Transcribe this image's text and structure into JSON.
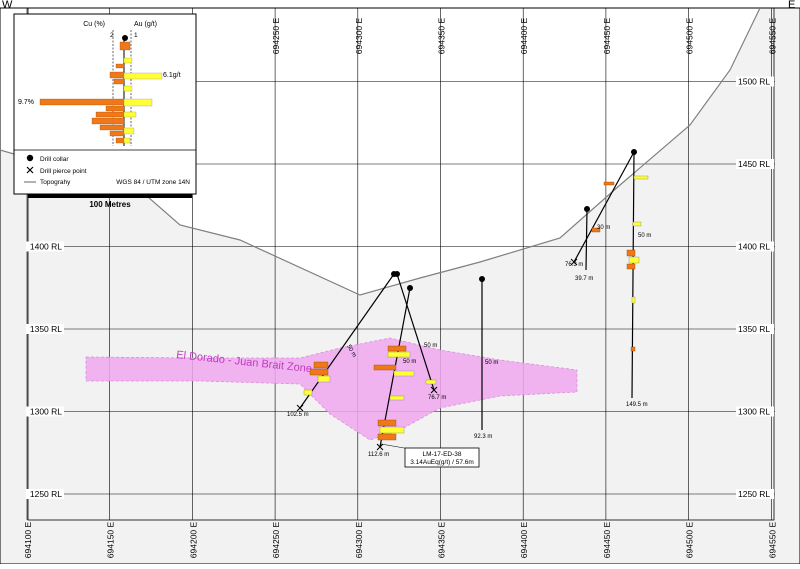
{
  "orientation": {
    "west": "W",
    "east": "E"
  },
  "colors": {
    "grid": "#000000",
    "topography": "#808080",
    "ground_fill": "#f2f2f2",
    "zone_fill": "#f0a8f0",
    "zone_label": "#c03cc0",
    "cu_bar": "#f07818",
    "au_bar": "#ffff33",
    "collar": "#000000"
  },
  "grid": {
    "easting_labels": [
      "694100 E",
      "694150 E",
      "694200 E",
      "694250 E",
      "694300 E",
      "694350 E",
      "694400 E",
      "694450 E",
      "694500 E",
      "694550 E"
    ],
    "elevation_labels": [
      "1500 RL",
      "1450 RL",
      "1400 RL",
      "1350 RL",
      "1300 RL",
      "1250 RL"
    ]
  },
  "zone": {
    "label": "El Dorado - Juan Brait Zone"
  },
  "drillholes": [
    {
      "id": "hole-1",
      "depth_label": "102.5 m",
      "mid_label": "50 m"
    },
    {
      "id": "hole-2",
      "depth_label": "76.7 m",
      "mid_label": "50 m"
    },
    {
      "id": "hole-3",
      "depth_label": "112.6 m",
      "mid_label": "50 m"
    },
    {
      "id": "hole-4",
      "depth_label": "92.3 m",
      "mid_label": "50 m"
    },
    {
      "id": "hole-5",
      "depth_label": "76.3 m",
      "mid_label": ""
    },
    {
      "id": "hole-6",
      "depth_label": "39.7 m",
      "mid_label": "30 m"
    },
    {
      "id": "hole-7",
      "depth_label": "149.5 m",
      "mid_label": "50 m"
    }
  ],
  "callout": {
    "hole_name": "LM-17-ED-38",
    "intercept": "3.14AuEq(g/t) / 57.6m"
  },
  "legend": {
    "cu_label": "Cu (%)",
    "au_label": "Au (g/t)",
    "cu_scale": "2",
    "au_scale": "1",
    "cu_max_label": "9.7%",
    "au_max_label": "6.1g/t",
    "drill_collar": "Drill collar",
    "drill_pierce": "Drill pierce point",
    "topography": "Topograhy",
    "projection": "WGS 84 / UTM zone 14N"
  },
  "scale_bar": {
    "label": "100 Metres"
  }
}
